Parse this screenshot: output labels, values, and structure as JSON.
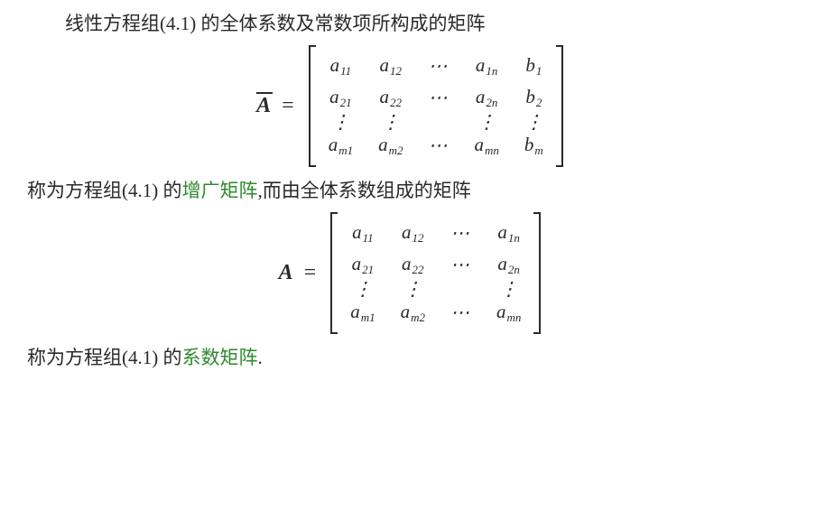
{
  "text": {
    "p1": "线性方程组(4.1) 的全体系数及常数项所构成的矩阵",
    "p2a": "称为方程组(4.1) 的",
    "p2_term": "增广矩阵",
    "p2b": ",而由全体系数组成的矩阵",
    "p3a": "称为方程组(4.1) 的",
    "p3_term": "系数矩阵",
    "p3b": "."
  },
  "sym": {
    "A": "A",
    "eq": "=",
    "a": "a",
    "b": "b",
    "cdots": "⋯",
    "vdots": "⋮"
  },
  "idx": {
    "r11": "11",
    "r12": "12",
    "r1n": "1n",
    "r21": "21",
    "r22": "22",
    "r2n": "2n",
    "rm1": "m1",
    "rm2": "m2",
    "rmn": "mn",
    "b1": "1",
    "b2": "2",
    "bm": "m"
  },
  "colors": {
    "text": "#2a2a2a",
    "term": "#2d8a2d",
    "bg": "#ffffff"
  },
  "fontsize_pt": 16
}
